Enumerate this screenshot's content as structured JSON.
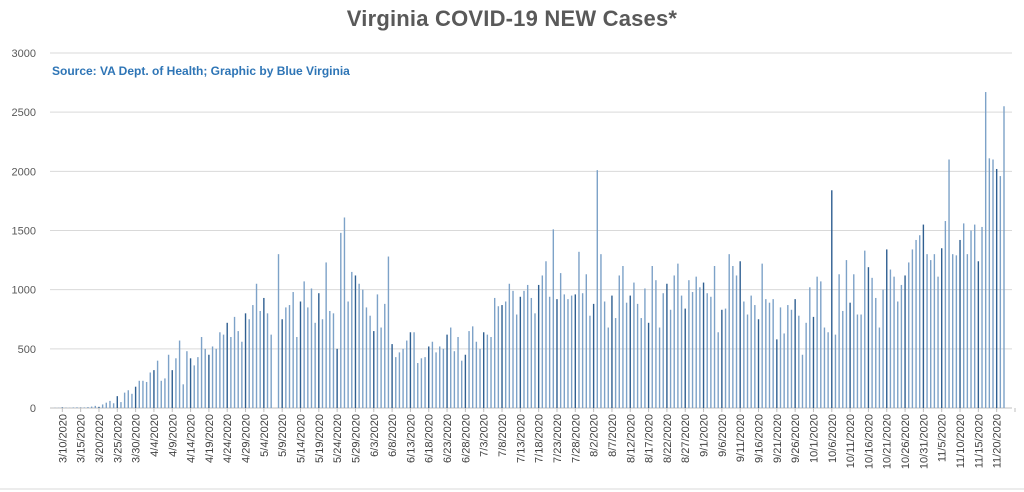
{
  "chart_data": {
    "type": "bar",
    "title": "Virginia COVID-19 NEW Cases*",
    "subtitle": "Source: VA Dept. of Health; Graphic by Blue Virginia",
    "xlabel": "",
    "ylabel": "",
    "ylim": [
      0,
      3000
    ],
    "yticks": [
      0,
      500,
      1000,
      1500,
      2000,
      2500,
      3000
    ],
    "grid": true,
    "start_date": "3/8/2020",
    "categories_labeled": [
      "3/10/2020",
      "3/15/2020",
      "3/20/2020",
      "3/25/2020",
      "3/30/2020",
      "4/4/2020",
      "4/9/2020",
      "4/14/2020",
      "4/19/2020",
      "4/24/2020",
      "4/29/2020",
      "5/4/2020",
      "5/9/2020",
      "5/14/2020",
      "5/19/2020",
      "5/24/2020",
      "5/29/2020",
      "6/3/2020",
      "6/8/2020",
      "6/13/2020",
      "6/18/2020",
      "6/23/2020",
      "6/28/2020",
      "7/3/2020",
      "7/8/2020",
      "7/13/2020",
      "7/18/2020",
      "7/23/2020",
      "7/28/2020",
      "8/2/2020",
      "8/7/2020",
      "8/12/2020",
      "8/17/2020",
      "8/22/2020",
      "8/27/2020",
      "9/1/2020",
      "9/6/2020",
      "9/11/2020",
      "9/16/2020",
      "9/21/2020",
      "9/26/2020",
      "10/1/2020",
      "10/6/2020",
      "10/11/2020",
      "10/16/2020",
      "10/21/2020",
      "10/26/2020",
      "10/31/2020",
      "11/5/2020",
      "11/10/2020",
      "11/15/2020",
      "11/20/2020"
    ],
    "values": [
      2,
      2,
      5,
      3,
      2,
      5,
      6,
      3,
      5,
      8,
      12,
      18,
      10,
      30,
      45,
      60,
      40,
      100,
      50,
      130,
      150,
      120,
      180,
      230,
      230,
      220,
      300,
      320,
      400,
      230,
      250,
      450,
      320,
      420,
      570,
      200,
      480,
      420,
      360,
      430,
      600,
      500,
      450,
      520,
      500,
      640,
      620,
      720,
      600,
      770,
      650,
      560,
      800,
      750,
      870,
      1050,
      820,
      930,
      800,
      620,
      0,
      1300,
      750,
      850,
      870,
      980,
      600,
      900,
      1070,
      850,
      1010,
      720,
      970,
      750,
      1230,
      820,
      800,
      500,
      1480,
      1610,
      900,
      1150,
      1120,
      1050,
      1000,
      850,
      780,
      650,
      960,
      680,
      880,
      1280,
      540,
      430,
      470,
      500,
      570,
      640,
      640,
      380,
      420,
      430,
      520,
      560,
      470,
      520,
      500,
      620,
      680,
      480,
      600,
      400,
      450,
      650,
      690,
      560,
      500,
      640,
      620,
      600,
      930,
      860,
      870,
      900,
      1050,
      990,
      790,
      940,
      990,
      1040,
      930,
      800,
      1040,
      1120,
      1240,
      940,
      1510,
      920,
      1140,
      960,
      920,
      950,
      960,
      1320,
      970,
      1130,
      780,
      880,
      2010,
      1300,
      900,
      680,
      950,
      760,
      1120,
      1200,
      890,
      950,
      1060,
      880,
      760,
      1010,
      720,
      1200,
      1080,
      680,
      970,
      1050,
      830,
      1120,
      1220,
      950,
      840,
      1080,
      980,
      1110,
      1020,
      1060,
      970,
      940,
      1200,
      640,
      830,
      840,
      1300,
      1200,
      1120,
      1240,
      900,
      790,
      950,
      870,
      750,
      1220,
      920,
      890,
      920,
      580,
      850,
      630,
      870,
      830,
      920,
      780,
      450,
      720,
      1020,
      770,
      1110,
      1070,
      680,
      640,
      1840,
      620,
      1130,
      820,
      1250,
      890,
      1130,
      790,
      790,
      1330,
      1190,
      1100,
      930,
      680,
      1000,
      1340,
      1170,
      1110,
      900,
      1040,
      1120,
      1230,
      1340,
      1420,
      1460,
      1550,
      1300,
      1250,
      1300,
      1110,
      1350,
      1580,
      2100,
      1300,
      1290,
      1420,
      1560,
      1300,
      1500,
      1550,
      1240,
      1530,
      2670,
      2110,
      2100,
      2020,
      1960,
      2550
    ]
  }
}
